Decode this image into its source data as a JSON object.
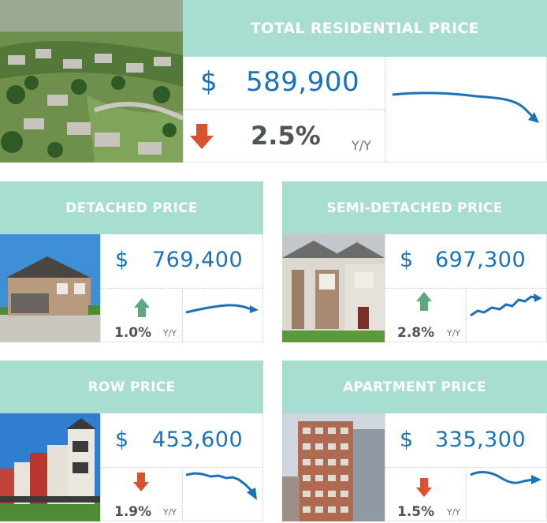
{
  "colors": {
    "header_bg": "#a8ddd1",
    "value_blue": "#1a72b8",
    "up_green": "#5aa982",
    "down_red": "#d9532f"
  },
  "total": {
    "title": "TOTAL RESIDENTIAL PRICE",
    "currency": "$",
    "price": "589,900",
    "change": "2.5%",
    "period": "Y/Y",
    "direction": "down",
    "image": "aerial-neighbourhood-photo"
  },
  "cards": [
    {
      "title": "DETACHED PRICE",
      "currency": "$",
      "price": "769,400",
      "change": "1.0%",
      "period": "Y/Y",
      "direction": "up",
      "image": "detached-house-photo"
    },
    {
      "title": "SEMI-DETACHED PRICE",
      "currency": "$",
      "price": "697,300",
      "change": "2.8%",
      "period": "Y/Y",
      "direction": "up",
      "image": "semi-detached-house-photo"
    },
    {
      "title": "ROW PRICE",
      "currency": "$",
      "price": "453,600",
      "change": "1.9%",
      "period": "Y/Y",
      "direction": "down",
      "image": "row-houses-photo"
    },
    {
      "title": "APARTMENT PRICE",
      "currency": "$",
      "price": "335,300",
      "change": "1.5%",
      "period": "Y/Y",
      "direction": "down",
      "image": "apartment-tower-photo"
    }
  ]
}
